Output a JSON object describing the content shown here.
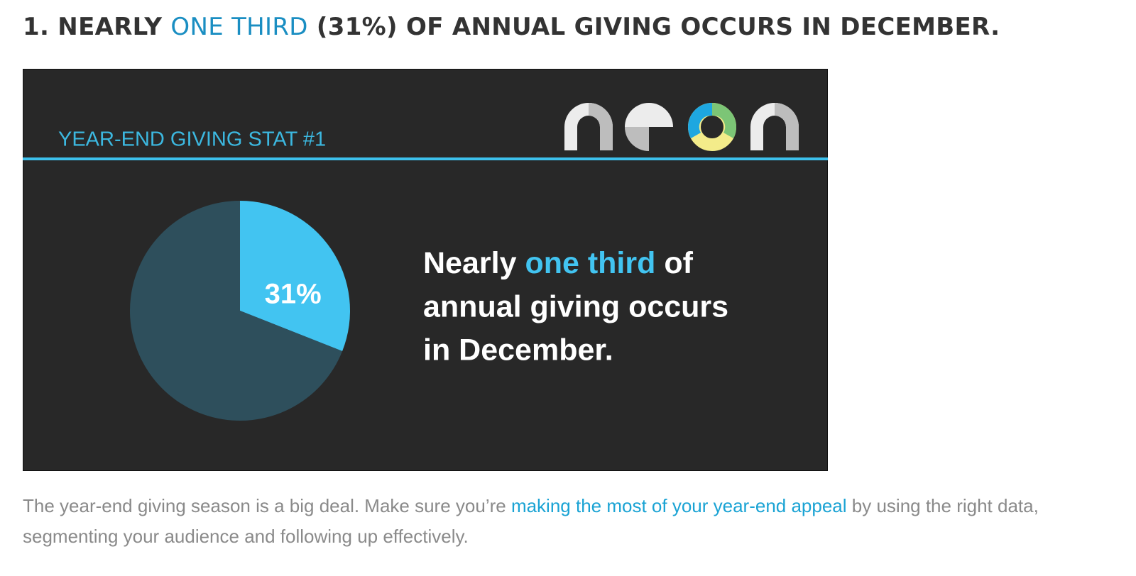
{
  "heading": {
    "before": "1. NEARLY ",
    "highlight": "ONE THIRD",
    "after": " (31%) OF ANNUAL GIVING OCCURS IN DECEMBER."
  },
  "infographic": {
    "label": "YEAR-END GIVING STAT #1",
    "headline": {
      "before": "Nearly ",
      "highlight": "one third",
      "line1_after": " of",
      "line2": "annual giving occurs",
      "line3": "in December."
    }
  },
  "chart_data": {
    "type": "pie",
    "values": [
      31,
      69
    ],
    "value_labels": [
      "31%",
      null
    ],
    "colors": [
      "#42c4f1",
      "#2e4f5c"
    ]
  },
  "paragraph": {
    "before": "The year-end giving season is a big deal. Make sure you’re ",
    "link": "making the most of your year-end appeal",
    "after": " by using the right data, segmenting your audience and following up effectively."
  }
}
